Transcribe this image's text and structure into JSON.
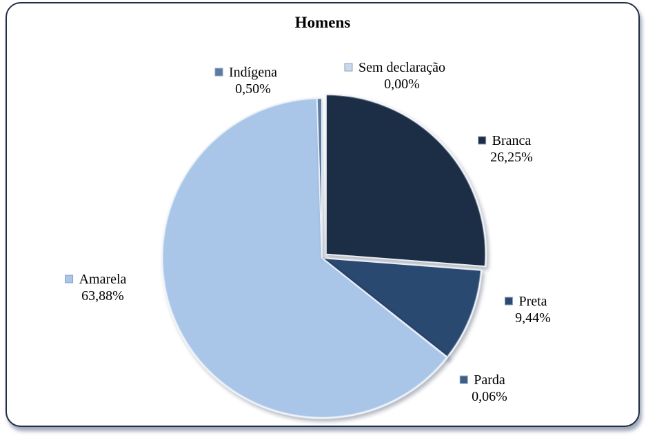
{
  "chart_data": {
    "type": "pie",
    "title": "Homens",
    "categories": [
      "Branca",
      "Preta",
      "Parda",
      "Amarela",
      "Indígena",
      "Sem declaração"
    ],
    "values": [
      26.25,
      9.44,
      0.06,
      63.88,
      0.5,
      0.0
    ],
    "value_labels": [
      "26,25%",
      "9,44%",
      "0,06%",
      "63,88%",
      "0,50%",
      "0,00%"
    ],
    "colors": [
      "#1e2d45",
      "#2c4a70",
      "#3d5e85",
      "#a9c5e8",
      "#5b7ba3",
      "#c9d8ea"
    ],
    "legend": "none",
    "exploded": [
      "Branca"
    ]
  }
}
